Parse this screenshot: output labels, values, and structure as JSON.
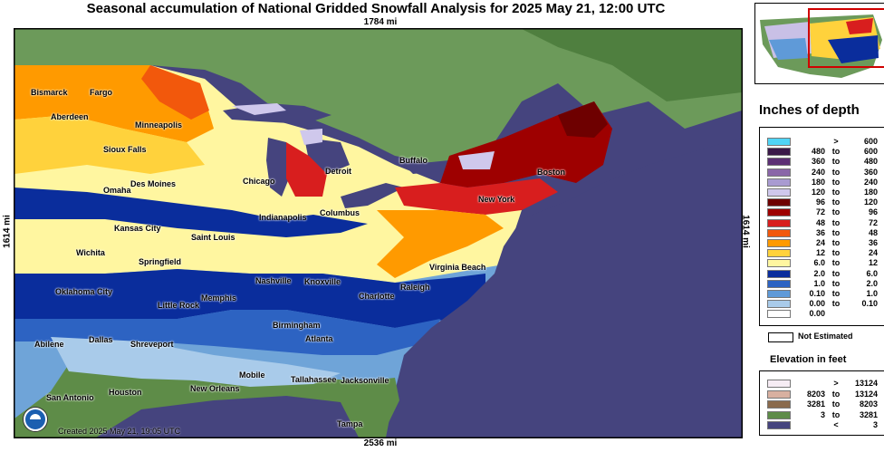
{
  "title": "Seasonal accumulation of National Gridded Snowfall Analysis for 2025 May 21, 12:00 UTC",
  "dimensions": {
    "top": "1784 mi",
    "bottom": "2536 mi",
    "left": "1614 mi",
    "right": "1614 mi"
  },
  "credit": "Created 2025 May 21, 19:05 UTC",
  "colors": {
    "water": "#45447e",
    "land_high": "#6c9a5a",
    "land_low": "#4f7f3f",
    "inset_frame": "#d00000"
  },
  "cities": [
    {
      "name": "Bismarck"
    },
    {
      "name": "Fargo"
    },
    {
      "name": "Aberdeen"
    },
    {
      "name": "Minneapolis"
    },
    {
      "name": "Sioux Falls"
    },
    {
      "name": "Des Moines"
    },
    {
      "name": "Omaha"
    },
    {
      "name": "Chicago"
    },
    {
      "name": "Detroit"
    },
    {
      "name": "Buffalo"
    },
    {
      "name": "Boston"
    },
    {
      "name": "New York"
    },
    {
      "name": "Columbus"
    },
    {
      "name": "Indianapolis"
    },
    {
      "name": "Kansas City"
    },
    {
      "name": "Saint Louis"
    },
    {
      "name": "Wichita"
    },
    {
      "name": "Springfield"
    },
    {
      "name": "Virginia Beach"
    },
    {
      "name": "Nashville"
    },
    {
      "name": "Knoxville"
    },
    {
      "name": "Charlotte"
    },
    {
      "name": "Raleigh"
    },
    {
      "name": "Oklahoma City"
    },
    {
      "name": "Memphis"
    },
    {
      "name": "Little Rock"
    },
    {
      "name": "Birmingham"
    },
    {
      "name": "Atlanta"
    },
    {
      "name": "Abilene"
    },
    {
      "name": "Dallas"
    },
    {
      "name": "Shreveport"
    },
    {
      "name": "Mobile"
    },
    {
      "name": "Tallahassee"
    },
    {
      "name": "Jacksonville"
    },
    {
      "name": "San Antonio"
    },
    {
      "name": "Houston"
    },
    {
      "name": "New Orleans"
    },
    {
      "name": "Tampa"
    }
  ],
  "legend": {
    "title": "Inches of depth",
    "rows": [
      {
        "lo": "",
        "to": ">",
        "hi": "600",
        "color": "#4fd4f5"
      },
      {
        "lo": "480",
        "to": "to",
        "hi": "600",
        "color": "#3a1848"
      },
      {
        "lo": "360",
        "to": "to",
        "hi": "480",
        "color": "#5c2f74"
      },
      {
        "lo": "240",
        "to": "to",
        "hi": "360",
        "color": "#8a66a8"
      },
      {
        "lo": "180",
        "to": "to",
        "hi": "240",
        "color": "#a99bd1"
      },
      {
        "lo": "120",
        "to": "to",
        "hi": "180",
        "color": "#cfc8ec"
      },
      {
        "lo": "96",
        "to": "to",
        "hi": "120",
        "color": "#6e0000"
      },
      {
        "lo": "72",
        "to": "to",
        "hi": "96",
        "color": "#9e0000"
      },
      {
        "lo": "48",
        "to": "to",
        "hi": "72",
        "color": "#d81e1e"
      },
      {
        "lo": "36",
        "to": "to",
        "hi": "48",
        "color": "#f2580c"
      },
      {
        "lo": "24",
        "to": "to",
        "hi": "36",
        "color": "#ff9a00"
      },
      {
        "lo": "12",
        "to": "to",
        "hi": "24",
        "color": "#ffd23c"
      },
      {
        "lo": "6.0",
        "to": "to",
        "hi": "12",
        "color": "#fff6a0"
      },
      {
        "lo": "2.0",
        "to": "to",
        "hi": "6.0",
        "color": "#0a2d9c"
      },
      {
        "lo": "1.0",
        "to": "to",
        "hi": "2.0",
        "color": "#2d63c2"
      },
      {
        "lo": "0.10",
        "to": "to",
        "hi": "1.0",
        "color": "#5f9ad8"
      },
      {
        "lo": "0.00",
        "to": "to",
        "hi": "0.10",
        "color": "#a9cbea"
      },
      {
        "lo": "0.00",
        "to": "",
        "hi": "",
        "color": "#ffffff"
      }
    ],
    "not_estimated": "Not Estimated"
  },
  "elevation": {
    "title": "Elevation in feet",
    "rows": [
      {
        "lo": "",
        "to": ">",
        "hi": "13124",
        "color": "#f6ecf4"
      },
      {
        "lo": "8203",
        "to": "to",
        "hi": "13124",
        "color": "#d8b0a0"
      },
      {
        "lo": "3281",
        "to": "to",
        "hi": "8203",
        "color": "#8a6a4c"
      },
      {
        "lo": "3",
        "to": "to",
        "hi": "3281",
        "color": "#5e8c48"
      },
      {
        "lo": "",
        "to": "<",
        "hi": "3",
        "color": "#45447e"
      }
    ]
  }
}
